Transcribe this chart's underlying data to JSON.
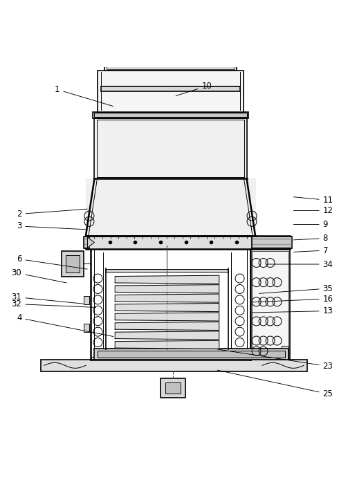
{
  "bg_color": "#ffffff",
  "line_color": "#000000",
  "figsize": [
    5.03,
    6.94
  ],
  "dpi": 100,
  "annotations": [
    [
      25,
      0.93,
      0.055,
      0.62,
      0.125
    ],
    [
      23,
      0.93,
      0.135,
      0.62,
      0.185
    ],
    [
      4,
      0.06,
      0.275,
      0.33,
      0.22
    ],
    [
      13,
      0.93,
      0.295,
      0.72,
      0.29
    ],
    [
      32,
      0.06,
      0.315,
      0.28,
      0.305
    ],
    [
      31,
      0.06,
      0.335,
      0.245,
      0.315
    ],
    [
      16,
      0.93,
      0.33,
      0.72,
      0.32
    ],
    [
      35,
      0.93,
      0.36,
      0.74,
      0.345
    ],
    [
      30,
      0.06,
      0.405,
      0.195,
      0.375
    ],
    [
      6,
      0.06,
      0.445,
      0.255,
      0.415
    ],
    [
      34,
      0.93,
      0.43,
      0.76,
      0.43
    ],
    [
      7,
      0.93,
      0.47,
      0.84,
      0.465
    ],
    [
      8,
      0.93,
      0.505,
      0.84,
      0.5
    ],
    [
      3,
      0.06,
      0.54,
      0.255,
      0.53
    ],
    [
      9,
      0.93,
      0.545,
      0.84,
      0.545
    ],
    [
      2,
      0.06,
      0.575,
      0.255,
      0.59
    ],
    [
      12,
      0.93,
      0.585,
      0.84,
      0.585
    ],
    [
      11,
      0.93,
      0.615,
      0.84,
      0.625
    ],
    [
      1,
      0.17,
      0.935,
      0.33,
      0.885
    ],
    [
      10,
      0.58,
      0.945,
      0.5,
      0.915
    ]
  ]
}
